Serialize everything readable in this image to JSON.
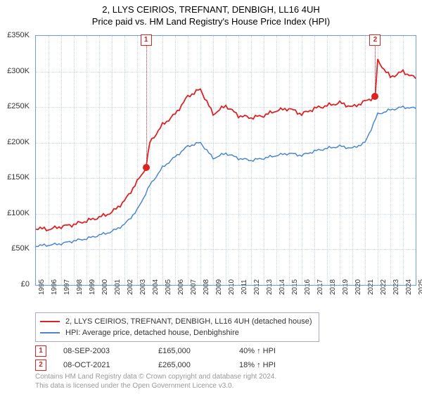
{
  "title": {
    "line1": "2, LLYS CEIRIOS, TREFNANT, DENBIGH, LL16 4UH",
    "line2": "Price paid vs. HM Land Registry's House Price Index (HPI)",
    "fontsize": 13,
    "color": "#000000"
  },
  "chart": {
    "type": "line",
    "background_color": "#ffffff",
    "border_color": "#6ea0d8",
    "grid_color": "#c8d8ec",
    "x_start_year": 1995,
    "x_end_year": 2025,
    "y_min": 0,
    "y_max": 350000,
    "y_ticks": [
      0,
      50000,
      100000,
      150000,
      200000,
      250000,
      300000,
      350000
    ],
    "y_tick_labels": [
      "£0",
      "£50K",
      "£100K",
      "£150K",
      "£200K",
      "£250K",
      "£300K",
      "£350K"
    ],
    "x_years": [
      1995,
      1996,
      1997,
      1998,
      1999,
      2000,
      2001,
      2002,
      2003,
      2004,
      2005,
      2006,
      2007,
      2008,
      2009,
      2010,
      2011,
      2012,
      2013,
      2014,
      2015,
      2016,
      2017,
      2018,
      2019,
      2020,
      2021,
      2022,
      2023,
      2024,
      2025
    ],
    "series": [
      {
        "name": "2, LLYS CEIRIOS, TREFNANT, DENBIGH, LL16 4UH (detached house)",
        "color": "#dd2222",
        "line_width": 1.8,
        "values_by_year": {
          "1995": 80000,
          "1996": 78000,
          "1997": 82000,
          "1998": 85000,
          "1999": 90000,
          "2000": 95000,
          "2001": 102000,
          "2002": 118000,
          "2003": 145000,
          "2003.7": 165000,
          "2004": 200000,
          "2005": 225000,
          "2006": 240000,
          "2007": 265000,
          "2008": 275000,
          "2009": 240000,
          "2010": 252000,
          "2011": 238000,
          "2012": 235000,
          "2013": 238000,
          "2014": 245000,
          "2015": 248000,
          "2016": 240000,
          "2017": 248000,
          "2018": 252000,
          "2019": 256000,
          "2020": 250000,
          "2021": 258000,
          "2021.8": 265000,
          "2022": 315000,
          "2023": 292000,
          "2024": 300000,
          "2025": 290000
        }
      },
      {
        "name": "HPI: Average price, detached house, Denbighshire",
        "color": "#4a86d0",
        "line_width": 1.5,
        "values_by_year": {
          "1995": 55000,
          "1996": 56000,
          "1997": 58000,
          "1998": 62000,
          "1999": 65000,
          "2000": 70000,
          "2001": 75000,
          "2002": 85000,
          "2003": 105000,
          "2004": 140000,
          "2005": 165000,
          "2006": 180000,
          "2007": 195000,
          "2008": 200000,
          "2009": 178000,
          "2010": 185000,
          "2011": 178000,
          "2012": 175000,
          "2013": 178000,
          "2014": 182000,
          "2015": 185000,
          "2016": 182000,
          "2017": 188000,
          "2018": 192000,
          "2019": 195000,
          "2020": 192000,
          "2021": 200000,
          "2022": 240000,
          "2023": 246000,
          "2024": 250000,
          "2025": 248000
        }
      }
    ],
    "markers": [
      {
        "id": "1",
        "year": 2003.7,
        "value": 165000
      },
      {
        "id": "2",
        "year": 2021.8,
        "value": 265000
      }
    ],
    "marker_color": "#dd2222",
    "label_fontsize": 11
  },
  "legend": {
    "items": [
      {
        "color": "#dd2222",
        "label": "2, LLYS CEIRIOS, TREFNANT, DENBIGH, LL16 4UH (detached house)"
      },
      {
        "color": "#4a86d0",
        "label": "HPI: Average price, detached house, Denbighshire"
      }
    ]
  },
  "sales": [
    {
      "marker": "1",
      "date": "08-SEP-2003",
      "price": "£165,000",
      "delta": "40% ↑ HPI"
    },
    {
      "marker": "2",
      "date": "08-OCT-2021",
      "price": "£265,000",
      "delta": "18% ↑ HPI"
    }
  ],
  "footer": {
    "line1": "Contains HM Land Registry data © Crown copyright and database right 2024.",
    "line2": "This data is licensed under the Open Government Licence v3.0."
  }
}
